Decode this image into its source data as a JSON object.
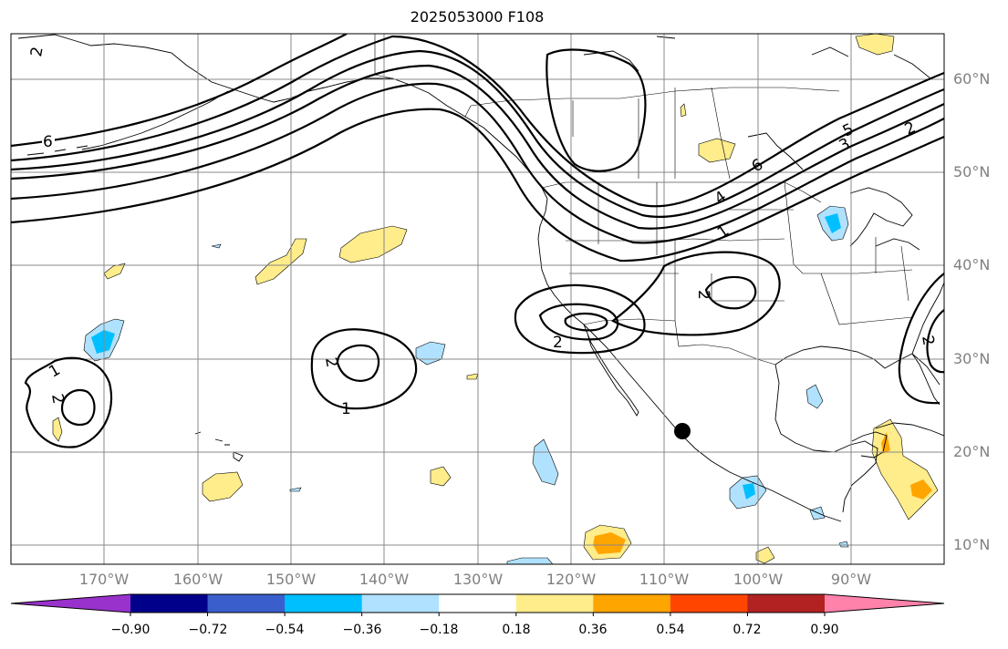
{
  "title": "2025053000 F108",
  "lat_labels": [
    "60°N",
    "50°N",
    "40°N",
    "30°N",
    "20°N",
    "10°N"
  ],
  "lon_labels": [
    "170°W",
    "160°W",
    "150°W",
    "140°W",
    "130°W",
    "120°W",
    "110°W",
    "100°W",
    "90°W"
  ],
  "colorbar": {
    "ticks": [
      "−0.90",
      "−0.72",
      "−0.54",
      "−0.36",
      "−0.18",
      "0.18",
      "0.36",
      "0.54",
      "0.72",
      "0.90"
    ],
    "colors": [
      "#9932CC",
      "#00008B",
      "#3A5FCD",
      "#00BFFF",
      "#B0E2FF",
      "#FFFFFF",
      "#FFEC8B",
      "#FFA500",
      "#FF4500",
      "#B22222",
      "#FF82AB"
    ]
  },
  "contour_labels": [
    "6",
    "6",
    "5",
    "3",
    "2",
    "4",
    "1",
    "2",
    "2",
    "2",
    "1",
    "2",
    "1",
    "2",
    "2"
  ],
  "marker": "black-dot"
}
